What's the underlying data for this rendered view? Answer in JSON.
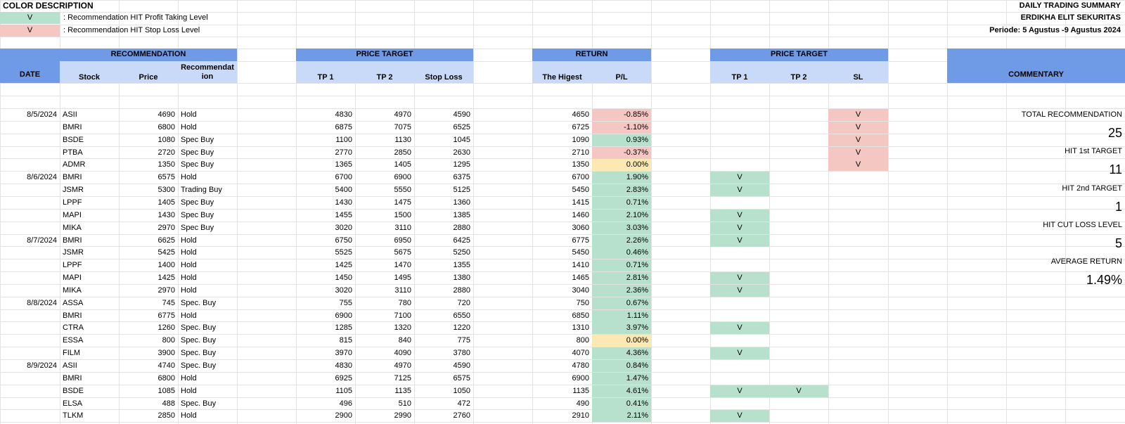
{
  "legend": {
    "title": "COLOR DESCRIPTION",
    "items": [
      {
        "mark": "V",
        "text": ": Recommendation HIT Profit Taking Level",
        "color": "#b7e1cd"
      },
      {
        "mark": "V",
        "text": ": Recommendation HIT Stop Loss Level",
        "color": "#f4c7c3"
      }
    ]
  },
  "report": {
    "title": "DAILY TRADING SUMMARY",
    "company": "ERDIKHA ELIT SEKURITAS",
    "period": "Periode:  5 Agustus -9 Agustus 2024"
  },
  "headers": {
    "date": "DATE",
    "recommendation": "RECOMMENDATION",
    "stock": "Stock",
    "price": "Price",
    "recommendation_sub": "Recommendat ion",
    "price_target": "PRICE TARGET",
    "tp1": "TP 1",
    "tp2": "TP 2",
    "stop_loss": "Stop Loss",
    "return": "RETURN",
    "highest": "The Higest",
    "pl": "P/L",
    "price_target2": "PRICE TARGET",
    "tp1_hit": "TP 1",
    "tp2_hit": "TP 2",
    "sl_hit": "SL",
    "commentary": "COMMENTARY"
  },
  "rows": [
    {
      "date": "8/5/2024",
      "stock": "ASII",
      "price": "4690",
      "rec": "Hold",
      "tp1": "4830",
      "tp2": "4970",
      "sl": "4590",
      "high": "4650",
      "pl": "-0.85%",
      "pl_color": "red",
      "hit_tp1": "",
      "hit_tp2": "",
      "hit_sl": "V"
    },
    {
      "date": "",
      "stock": "BMRI",
      "price": "6800",
      "rec": "Hold",
      "tp1": "6875",
      "tp2": "7075",
      "sl": "6525",
      "high": "6725",
      "pl": "-1.10%",
      "pl_color": "red",
      "hit_tp1": "",
      "hit_tp2": "",
      "hit_sl": "V"
    },
    {
      "date": "",
      "stock": "BSDE",
      "price": "1080",
      "rec": "Spec Buy",
      "tp1": "1100",
      "tp2": "1130",
      "sl": "1045",
      "high": "1090",
      "pl": "0.93%",
      "pl_color": "green",
      "hit_tp1": "",
      "hit_tp2": "",
      "hit_sl": "V"
    },
    {
      "date": "",
      "stock": "PTBA",
      "price": "2720",
      "rec": "Spec Buy",
      "tp1": "2770",
      "tp2": "2850",
      "sl": "2630",
      "high": "2710",
      "pl": "-0.37%",
      "pl_color": "red",
      "hit_tp1": "",
      "hit_tp2": "",
      "hit_sl": "V"
    },
    {
      "date": "",
      "stock": "ADMR",
      "price": "1350",
      "rec": "Spec Buy",
      "tp1": "1365",
      "tp2": "1405",
      "sl": "1295",
      "high": "1350",
      "pl": "0.00%",
      "pl_color": "yellow",
      "hit_tp1": "",
      "hit_tp2": "",
      "hit_sl": "V"
    },
    {
      "date": "8/6/2024",
      "stock": "BMRI",
      "price": "6575",
      "rec": "Hold",
      "tp1": "6700",
      "tp2": "6900",
      "sl": "6375",
      "high": "6700",
      "pl": "1.90%",
      "pl_color": "green",
      "hit_tp1": "V",
      "hit_tp2": "",
      "hit_sl": ""
    },
    {
      "date": "",
      "stock": "JSMR",
      "price": "5300",
      "rec": "Trading Buy",
      "tp1": "5400",
      "tp2": "5550",
      "sl": "5125",
      "high": "5450",
      "pl": "2.83%",
      "pl_color": "green",
      "hit_tp1": "V",
      "hit_tp2": "",
      "hit_sl": ""
    },
    {
      "date": "",
      "stock": "LPPF",
      "price": "1405",
      "rec": "Spec Buy",
      "tp1": "1430",
      "tp2": "1475",
      "sl": "1360",
      "high": "1415",
      "pl": "0.71%",
      "pl_color": "green",
      "hit_tp1": "",
      "hit_tp2": "",
      "hit_sl": ""
    },
    {
      "date": "",
      "stock": "MAPI",
      "price": "1430",
      "rec": "Spec Buy",
      "tp1": "1455",
      "tp2": "1500",
      "sl": "1385",
      "high": "1460",
      "pl": "2.10%",
      "pl_color": "green",
      "hit_tp1": "V",
      "hit_tp2": "",
      "hit_sl": ""
    },
    {
      "date": "",
      "stock": "MIKA",
      "price": "2970",
      "rec": "Spec Buy",
      "tp1": "3020",
      "tp2": "3110",
      "sl": "2880",
      "high": "3060",
      "pl": "3.03%",
      "pl_color": "green",
      "hit_tp1": "V",
      "hit_tp2": "",
      "hit_sl": ""
    },
    {
      "date": "8/7/2024",
      "stock": "BMRI",
      "price": "6625",
      "rec": "Hold",
      "tp1": "6750",
      "tp2": "6950",
      "sl": "6425",
      "high": "6775",
      "pl": "2.26%",
      "pl_color": "green",
      "hit_tp1": "V",
      "hit_tp2": "",
      "hit_sl": ""
    },
    {
      "date": "",
      "stock": "JSMR",
      "price": "5425",
      "rec": "Hold",
      "tp1": "5525",
      "tp2": "5675",
      "sl": "5250",
      "high": "5450",
      "pl": "0.46%",
      "pl_color": "green",
      "hit_tp1": "",
      "hit_tp2": "",
      "hit_sl": ""
    },
    {
      "date": "",
      "stock": "LPPF",
      "price": "1400",
      "rec": "Hold",
      "tp1": "1425",
      "tp2": "1470",
      "sl": "1355",
      "high": "1410",
      "pl": "0.71%",
      "pl_color": "green",
      "hit_tp1": "",
      "hit_tp2": "",
      "hit_sl": ""
    },
    {
      "date": "",
      "stock": "MAPI",
      "price": "1425",
      "rec": "Hold",
      "tp1": "1450",
      "tp2": "1495",
      "sl": "1380",
      "high": "1465",
      "pl": "2.81%",
      "pl_color": "green",
      "hit_tp1": "V",
      "hit_tp2": "",
      "hit_sl": ""
    },
    {
      "date": "",
      "stock": "MIKA",
      "price": "2970",
      "rec": "Hold",
      "tp1": "3020",
      "tp2": "3110",
      "sl": "2880",
      "high": "3040",
      "pl": "2.36%",
      "pl_color": "green",
      "hit_tp1": "V",
      "hit_tp2": "",
      "hit_sl": ""
    },
    {
      "date": "8/8/2024",
      "stock": "ASSA",
      "price": "745",
      "rec": "Spec. Buy",
      "tp1": "755",
      "tp2": "780",
      "sl": "720",
      "high": "750",
      "pl": "0.67%",
      "pl_color": "green",
      "hit_tp1": "",
      "hit_tp2": "",
      "hit_sl": ""
    },
    {
      "date": "",
      "stock": "BMRI",
      "price": "6775",
      "rec": "Hold",
      "tp1": "6900",
      "tp2": "7100",
      "sl": "6550",
      "high": "6850",
      "pl": "1.11%",
      "pl_color": "green",
      "hit_tp1": "",
      "hit_tp2": "",
      "hit_sl": ""
    },
    {
      "date": "",
      "stock": "CTRA",
      "price": "1260",
      "rec": "Spec. Buy",
      "tp1": "1285",
      "tp2": "1320",
      "sl": "1220",
      "high": "1310",
      "pl": "3.97%",
      "pl_color": "green",
      "hit_tp1": "V",
      "hit_tp2": "",
      "hit_sl": ""
    },
    {
      "date": "",
      "stock": "ESSA",
      "price": "800",
      "rec": "Spec. Buy",
      "tp1": "815",
      "tp2": "840",
      "sl": "775",
      "high": "800",
      "pl": "0.00%",
      "pl_color": "yellow",
      "hit_tp1": "",
      "hit_tp2": "",
      "hit_sl": ""
    },
    {
      "date": "",
      "stock": "FILM",
      "price": "3900",
      "rec": "Spec. Buy",
      "tp1": "3970",
      "tp2": "4090",
      "sl": "3780",
      "high": "4070",
      "pl": "4.36%",
      "pl_color": "green",
      "hit_tp1": "V",
      "hit_tp2": "",
      "hit_sl": ""
    },
    {
      "date": "8/9/2024",
      "stock": "ASII",
      "price": "4740",
      "rec": "Spec. Buy",
      "tp1": "4830",
      "tp2": "4970",
      "sl": "4590",
      "high": "4780",
      "pl": "0.84%",
      "pl_color": "green",
      "hit_tp1": "",
      "hit_tp2": "",
      "hit_sl": ""
    },
    {
      "date": "",
      "stock": "BMRI",
      "price": "6800",
      "rec": "Hold",
      "tp1": "6925",
      "tp2": "7125",
      "sl": "6575",
      "high": "6900",
      "pl": "1.47%",
      "pl_color": "green",
      "hit_tp1": "",
      "hit_tp2": "",
      "hit_sl": ""
    },
    {
      "date": "",
      "stock": "BSDE",
      "price": "1085",
      "rec": "Hold",
      "tp1": "1105",
      "tp2": "1135",
      "sl": "1050",
      "high": "1135",
      "pl": "4.61%",
      "pl_color": "green",
      "hit_tp1": "V",
      "hit_tp2": "V",
      "hit_sl": ""
    },
    {
      "date": "",
      "stock": "ELSA",
      "price": "488",
      "rec": "Spec. Buy",
      "tp1": "496",
      "tp2": "510",
      "sl": "472",
      "high": "490",
      "pl": "0.41%",
      "pl_color": "green",
      "hit_tp1": "",
      "hit_tp2": "",
      "hit_sl": ""
    },
    {
      "date": "",
      "stock": "TLKM",
      "price": "2850",
      "rec": "Hold",
      "tp1": "2900",
      "tp2": "2990",
      "sl": "2760",
      "high": "2910",
      "pl": "2.11%",
      "pl_color": "green",
      "hit_tp1": "V",
      "hit_tp2": "",
      "hit_sl": ""
    }
  ],
  "summary": [
    {
      "label": "TOTAL RECOMMENDATION",
      "value": "25"
    },
    {
      "label": "HIT 1st TARGET",
      "value": "11"
    },
    {
      "label": "HIT 2nd TARGET",
      "value": "1"
    },
    {
      "label": "HIT CUT LOSS LEVEL",
      "value": "5"
    },
    {
      "label": "AVERAGE RETURN",
      "value": "1.49%"
    }
  ]
}
